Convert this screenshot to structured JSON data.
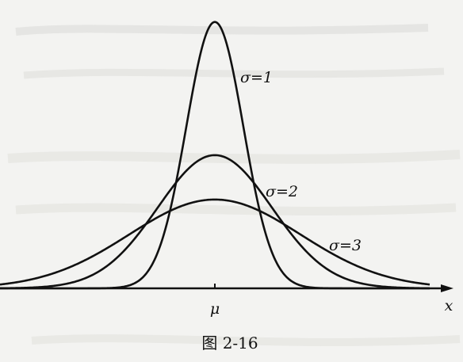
{
  "chart_data": {
    "type": "line",
    "title": "",
    "xlabel": "x",
    "ylabel": "",
    "x_tick_labels": [
      "μ"
    ],
    "xlim": [
      -7.5,
      9.0
    ],
    "ylim": [
      0,
      0.42
    ],
    "grid": false,
    "legend": "none",
    "mean": 0,
    "series": [
      {
        "name": "σ=1",
        "sigma": 1
      },
      {
        "name": "σ=2",
        "sigma": 2
      },
      {
        "name": "σ=3",
        "sigma": 3
      }
    ],
    "caption": "图 2-16"
  },
  "colors": {
    "background": "#f3f3f1",
    "ink": "#111111",
    "bleed_through_text": "#c9c9c6"
  }
}
